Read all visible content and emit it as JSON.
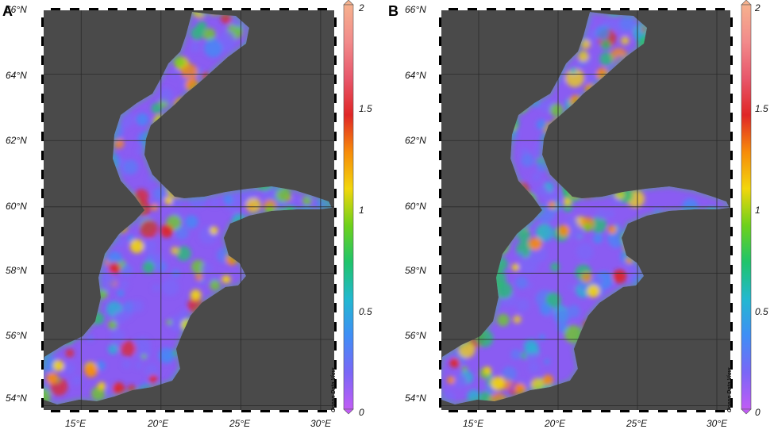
{
  "panels": [
    {
      "label": "A",
      "lat_labels": [
        "66°N",
        "64°N",
        "62°N",
        "60°N",
        "58°N",
        "56°N",
        "54°N"
      ],
      "lon_labels": [
        "15°E",
        "20°E",
        "25°E",
        "30°E"
      ],
      "watermark": "Ocean Data View"
    },
    {
      "label": "B",
      "lat_labels": [
        "66°N",
        "64°N",
        "62°N",
        "60°N",
        "58°N",
        "56°N",
        "54°N"
      ],
      "lon_labels": [
        "15°E",
        "20°E",
        "25°E",
        "30°E"
      ],
      "watermark": "Ocean Data View"
    }
  ],
  "colorbar": {
    "ticks": [
      "2",
      "1.5",
      "1",
      "0.5",
      "0"
    ],
    "tick_values": [
      2,
      1.5,
      1,
      0.5,
      0
    ],
    "range": [
      0,
      2
    ],
    "colors": [
      "#c05cf5",
      "#7a67f7",
      "#3f8ef6",
      "#22b8d0",
      "#1fc46b",
      "#6ed11b",
      "#f2d60c",
      "#f78b0a",
      "#e02626",
      "#e8576b",
      "#f28b8b",
      "#f6b18e"
    ]
  },
  "map": {
    "lat_range": [
      53.8,
      66.0
    ],
    "lon_range": [
      12.5,
      31.0
    ],
    "land_color": "#4a4a4a",
    "grid_color": "#2a2a2a"
  }
}
